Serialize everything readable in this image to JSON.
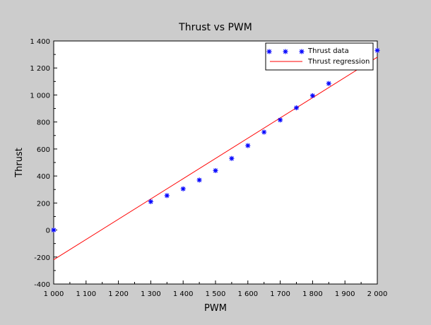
{
  "chart_data": {
    "type": "scatter",
    "title": "Thrust vs PWM",
    "xlabel": "PWM",
    "ylabel": "Thrust",
    "xlim": [
      1000,
      2000
    ],
    "ylim": [
      -400,
      1400
    ],
    "x_ticks": [
      "1 000",
      "1 100",
      "1 200",
      "1 300",
      "1 400",
      "1 500",
      "1 600",
      "1 700",
      "1 800",
      "1 900",
      "2 000"
    ],
    "y_ticks": [
      "-400",
      "-200",
      "0",
      "200",
      "400",
      "600",
      "800",
      "1 000",
      "1 200",
      "1 400"
    ],
    "grid": false,
    "legend_position": "top-right",
    "series": [
      {
        "name": "Thrust data",
        "kind": "markers",
        "marker": "asterisk",
        "color": "#0000ff",
        "x": [
          1000,
          1300,
          1350,
          1400,
          1450,
          1500,
          1550,
          1600,
          1650,
          1700,
          1750,
          1800,
          1850,
          2000
        ],
        "y": [
          0,
          210,
          255,
          305,
          370,
          440,
          530,
          625,
          725,
          815,
          905,
          995,
          1085,
          1330
        ]
      },
      {
        "name": "Thrust regression",
        "kind": "line",
        "color": "#ff0000",
        "x": [
          1000,
          2000
        ],
        "y": [
          -220,
          1280
        ]
      }
    ]
  }
}
